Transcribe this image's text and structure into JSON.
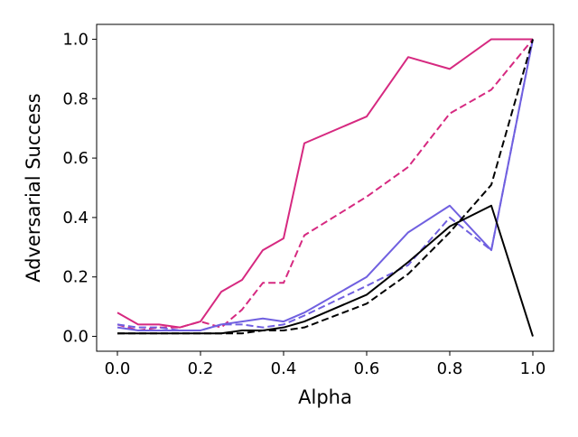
{
  "chart_data": {
    "type": "line",
    "title": "",
    "xlabel": "Alpha",
    "ylabel": "Adversarial Success",
    "xlim": [
      -0.05,
      1.05
    ],
    "ylim": [
      -0.05,
      1.05
    ],
    "grid": false,
    "x_ticks": [
      0.0,
      0.2,
      0.4,
      0.6,
      0.8,
      1.0
    ],
    "x_tick_labels": [
      "0.0",
      "0.2",
      "0.4",
      "0.6",
      "0.8",
      "1.0"
    ],
    "y_ticks": [
      0.0,
      0.2,
      0.4,
      0.6,
      0.8,
      1.0
    ],
    "y_tick_labels": [
      "0.0",
      "0.2",
      "0.4",
      "0.6",
      "0.8",
      "1.0"
    ],
    "series": [
      {
        "color": "#d62980",
        "dash": "solid",
        "points": [
          [
            0.0,
            0.08
          ],
          [
            0.05,
            0.04
          ],
          [
            0.1,
            0.04
          ],
          [
            0.15,
            0.03
          ],
          [
            0.2,
            0.05
          ],
          [
            0.25,
            0.15
          ],
          [
            0.3,
            0.19
          ],
          [
            0.35,
            0.29
          ],
          [
            0.4,
            0.33
          ],
          [
            0.45,
            0.65
          ],
          [
            0.6,
            0.74
          ],
          [
            0.7,
            0.94
          ],
          [
            0.8,
            0.9
          ],
          [
            0.9,
            1.0
          ],
          [
            1.0,
            1.0
          ]
        ]
      },
      {
        "color": "#d62980",
        "dash": "dashed",
        "points": [
          [
            0.0,
            0.04
          ],
          [
            0.05,
            0.02
          ],
          [
            0.1,
            0.03
          ],
          [
            0.15,
            0.03
          ],
          [
            0.2,
            0.05
          ],
          [
            0.25,
            0.03
          ],
          [
            0.3,
            0.09
          ],
          [
            0.35,
            0.18
          ],
          [
            0.4,
            0.18
          ],
          [
            0.45,
            0.34
          ],
          [
            0.6,
            0.47
          ],
          [
            0.7,
            0.57
          ],
          [
            0.8,
            0.75
          ],
          [
            0.9,
            0.83
          ],
          [
            1.0,
            1.0
          ]
        ]
      },
      {
        "color": "#7060e0",
        "dash": "solid",
        "points": [
          [
            0.0,
            0.03
          ],
          [
            0.05,
            0.02
          ],
          [
            0.1,
            0.02
          ],
          [
            0.15,
            0.02
          ],
          [
            0.2,
            0.02
          ],
          [
            0.25,
            0.04
          ],
          [
            0.3,
            0.05
          ],
          [
            0.35,
            0.06
          ],
          [
            0.4,
            0.05
          ],
          [
            0.45,
            0.08
          ],
          [
            0.6,
            0.2
          ],
          [
            0.7,
            0.35
          ],
          [
            0.8,
            0.44
          ],
          [
            0.9,
            0.29
          ],
          [
            1.0,
            1.0
          ]
        ]
      },
      {
        "color": "#7060e0",
        "dash": "dashed",
        "points": [
          [
            0.0,
            0.04
          ],
          [
            0.05,
            0.03
          ],
          [
            0.1,
            0.03
          ],
          [
            0.15,
            0.02
          ],
          [
            0.2,
            0.02
          ],
          [
            0.25,
            0.04
          ],
          [
            0.3,
            0.04
          ],
          [
            0.35,
            0.03
          ],
          [
            0.4,
            0.04
          ],
          [
            0.45,
            0.07
          ],
          [
            0.6,
            0.17
          ],
          [
            0.7,
            0.24
          ],
          [
            0.8,
            0.4
          ],
          [
            0.9,
            0.29
          ],
          [
            1.0,
            1.0
          ]
        ]
      },
      {
        "color": "#000000",
        "dash": "solid",
        "points": [
          [
            0.0,
            0.01
          ],
          [
            0.05,
            0.01
          ],
          [
            0.1,
            0.01
          ],
          [
            0.15,
            0.01
          ],
          [
            0.2,
            0.01
          ],
          [
            0.25,
            0.01
          ],
          [
            0.3,
            0.02
          ],
          [
            0.35,
            0.02
          ],
          [
            0.4,
            0.03
          ],
          [
            0.45,
            0.05
          ],
          [
            0.6,
            0.14
          ],
          [
            0.7,
            0.25
          ],
          [
            0.8,
            0.37
          ],
          [
            0.9,
            0.44
          ],
          [
            1.0,
            0.0
          ]
        ]
      },
      {
        "color": "#000000",
        "dash": "dashed",
        "points": [
          [
            0.0,
            0.01
          ],
          [
            0.05,
            0.01
          ],
          [
            0.1,
            0.01
          ],
          [
            0.15,
            0.01
          ],
          [
            0.2,
            0.01
          ],
          [
            0.25,
            0.01
          ],
          [
            0.3,
            0.01
          ],
          [
            0.35,
            0.02
          ],
          [
            0.4,
            0.02
          ],
          [
            0.45,
            0.03
          ],
          [
            0.6,
            0.11
          ],
          [
            0.7,
            0.21
          ],
          [
            0.8,
            0.35
          ],
          [
            0.9,
            0.51
          ],
          [
            1.0,
            1.0
          ]
        ]
      }
    ]
  }
}
